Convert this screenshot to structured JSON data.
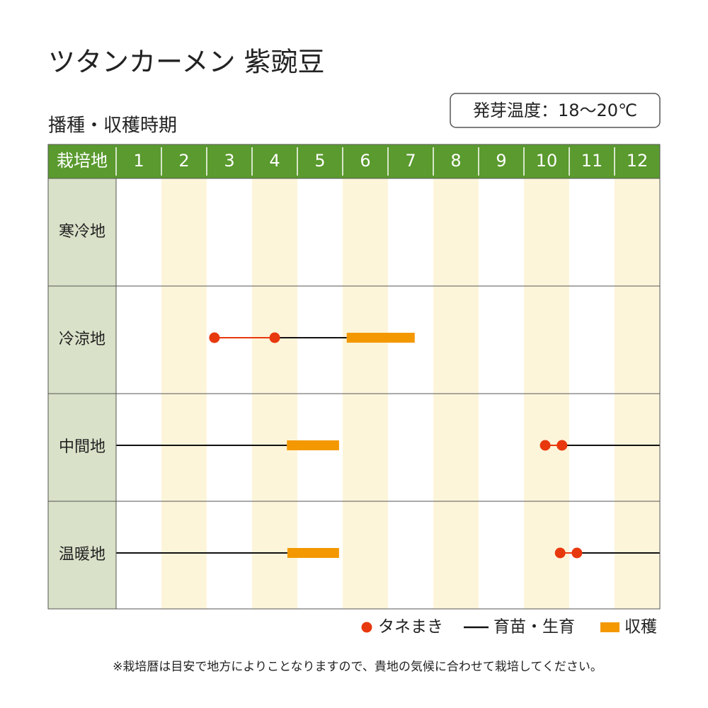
{
  "header": {
    "title": "ツタンカーメン 紫豌豆",
    "subtitle": "播種・収穫時期",
    "badge": "発芽温度：18〜20℃"
  },
  "table": {
    "corner": "栽培地",
    "months": [
      "1",
      "2",
      "3",
      "4",
      "5",
      "6",
      "7",
      "8",
      "9",
      "10",
      "11",
      "12"
    ],
    "xlim": [
      0,
      12
    ],
    "regions": [
      {
        "name": "寒冷地",
        "sowing": [],
        "growth": [],
        "harvest": []
      },
      {
        "name": "冷涼地",
        "sowing": [
          2.17,
          3.5
        ],
        "growth": [
          [
            3.5,
            5.09
          ]
        ],
        "harvest": [
          5.09,
          6.59
        ]
      },
      {
        "name": "中間地",
        "sowing": [
          9.47,
          9.84
        ],
        "growth": [
          [
            0,
            3.77
          ],
          [
            9.84,
            12
          ]
        ],
        "harvest": [
          3.77,
          4.92
        ]
      },
      {
        "name": "温暖地",
        "sowing": [
          9.8,
          10.17
        ],
        "growth": [
          [
            0,
            3.78
          ],
          [
            10.17,
            12
          ]
        ],
        "harvest": [
          3.78,
          4.92
        ]
      }
    ]
  },
  "legend": {
    "sowing": "タネまき",
    "growth": "育苗・生育",
    "harvest": "収穫"
  },
  "note": "※栽培暦は目安で地方によりことなりますので、貴地の気候に合わせて栽培してください。"
}
